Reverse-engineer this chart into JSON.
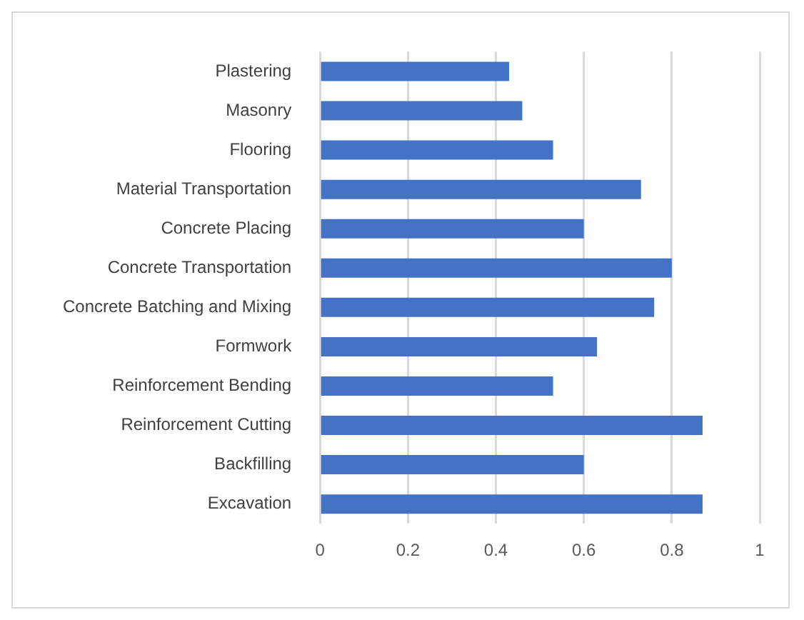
{
  "chart_data": {
    "type": "bar",
    "orientation": "horizontal",
    "categories": [
      "Plastering",
      "Masonry",
      "Flooring",
      "Material Transportation",
      "Concrete Placing",
      "Concrete Transportation",
      "Concrete Batching and Mixing",
      "Formwork",
      "Reinforcement Bending",
      "Reinforcement Cutting",
      "Backfilling",
      "Excavation"
    ],
    "values": [
      0.43,
      0.46,
      0.53,
      0.73,
      0.6,
      0.8,
      0.76,
      0.63,
      0.53,
      0.87,
      0.6,
      0.87
    ],
    "color": "#4472c4",
    "xlim": [
      0,
      1
    ],
    "xticks": [
      0,
      0.2,
      0.4,
      0.6,
      0.8,
      1
    ],
    "grid": "x"
  }
}
